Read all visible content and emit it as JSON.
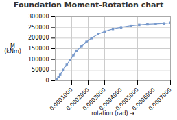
{
  "chart_data": {
    "type": "line",
    "title": "Foundation Moment-Rotation chart",
    "xlabel": "rotation (rad)",
    "ylabel": "M\n(kNm)",
    "x": [
      0.0,
      1e-05,
      2e-05,
      3e-05,
      5e-05,
      7e-05,
      9e-05,
      0.00011,
      0.00013,
      0.00016,
      0.00019,
      0.00022,
      0.00026,
      0.0003,
      0.00035,
      0.0004,
      0.00046,
      0.00051,
      0.00056,
      0.00061,
      0.00066,
      0.0007
    ],
    "values": [
      0,
      8000,
      18000,
      30000,
      52000,
      75000,
      98000,
      120000,
      140000,
      162000,
      183000,
      200000,
      218000,
      230000,
      242000,
      250000,
      258000,
      262000,
      265000,
      267000,
      269000,
      272000
    ],
    "color": "#7799cc",
    "marker": "square",
    "xlim": [
      0,
      0.0007
    ],
    "ylim": [
      0,
      300000
    ],
    "xticks": [
      {
        "value": 0.0001,
        "label": "0.0001000"
      },
      {
        "value": 0.0002,
        "label": "0.0002000"
      },
      {
        "value": 0.0003,
        "label": "0.0003000"
      },
      {
        "value": 0.0004,
        "label": "0.0004000"
      },
      {
        "value": 0.0005,
        "label": "0.0005000"
      },
      {
        "value": 0.0006,
        "label": "0.0006000"
      },
      {
        "value": 0.0007,
        "label": "0.0007000"
      }
    ],
    "yticks": [
      0,
      50000,
      100000,
      150000,
      200000,
      250000,
      300000
    ],
    "grid": true
  }
}
